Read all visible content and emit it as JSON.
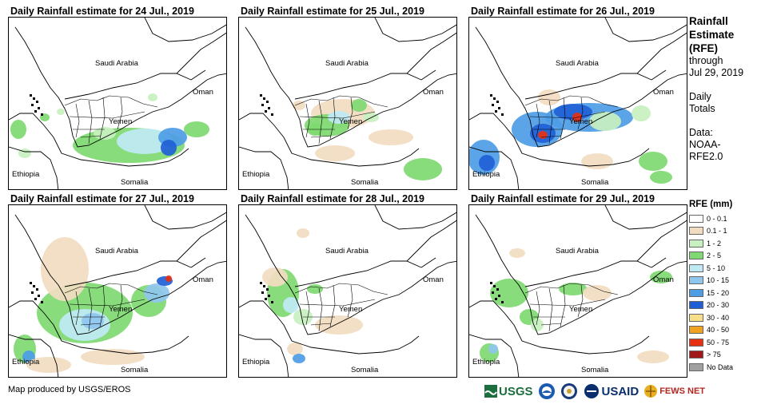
{
  "panels": [
    {
      "title": "Daily Rainfall estimate for 24 Jul., 2019"
    },
    {
      "title": "Daily Rainfall estimate for 25 Jul., 2019"
    },
    {
      "title": "Daily Rainfall estimate for 26 Jul., 2019"
    },
    {
      "title": "Daily Rainfall estimate for 27 Jul., 2019"
    },
    {
      "title": "Daily Rainfall estimate for 28 Jul., 2019"
    },
    {
      "title": "Daily Rainfall estimate for 29 Jul., 2019"
    }
  ],
  "map_labels": {
    "saudi": "Saudi Arabia",
    "oman": "Oman",
    "yemen": "Yemen",
    "ethiopia": "Ethiopia",
    "somalia": "Somalia"
  },
  "legend": {
    "title_lines": [
      "Rainfall",
      "Estimate",
      "(RFE)"
    ],
    "through": "through",
    "date": "Jul 29, 2019",
    "daily": [
      "Daily",
      "Totals"
    ],
    "data_lines": [
      "Data:",
      "NOAA-",
      "RFE2.0"
    ],
    "heading": "RFE (mm)",
    "items": [
      {
        "label": "0 - 0.1",
        "color": "#ffffff"
      },
      {
        "label": "0.1 - 1",
        "color": "#f2dcc0"
      },
      {
        "label": "1 - 2",
        "color": "#c8f0c0"
      },
      {
        "label": "2 - 5",
        "color": "#7ed970"
      },
      {
        "label": "5 - 10",
        "color": "#bfe9f5"
      },
      {
        "label": "10 - 15",
        "color": "#8fc6ee"
      },
      {
        "label": "15 - 20",
        "color": "#4d9ce6"
      },
      {
        "label": "20 - 30",
        "color": "#1f5fd6"
      },
      {
        "label": "30 - 40",
        "color": "#f8e08a"
      },
      {
        "label": "40 - 50",
        "color": "#f2a020"
      },
      {
        "label": "50 - 75",
        "color": "#e83010"
      },
      {
        "label": "> 75",
        "color": "#a01818"
      },
      {
        "label": "No Data",
        "color": "#a0a0a0"
      }
    ]
  },
  "credit": "Map produced by USGS/EROS",
  "logos": {
    "usgs": "USGS",
    "usaid": "USAID",
    "fews": "FEWS NET"
  }
}
